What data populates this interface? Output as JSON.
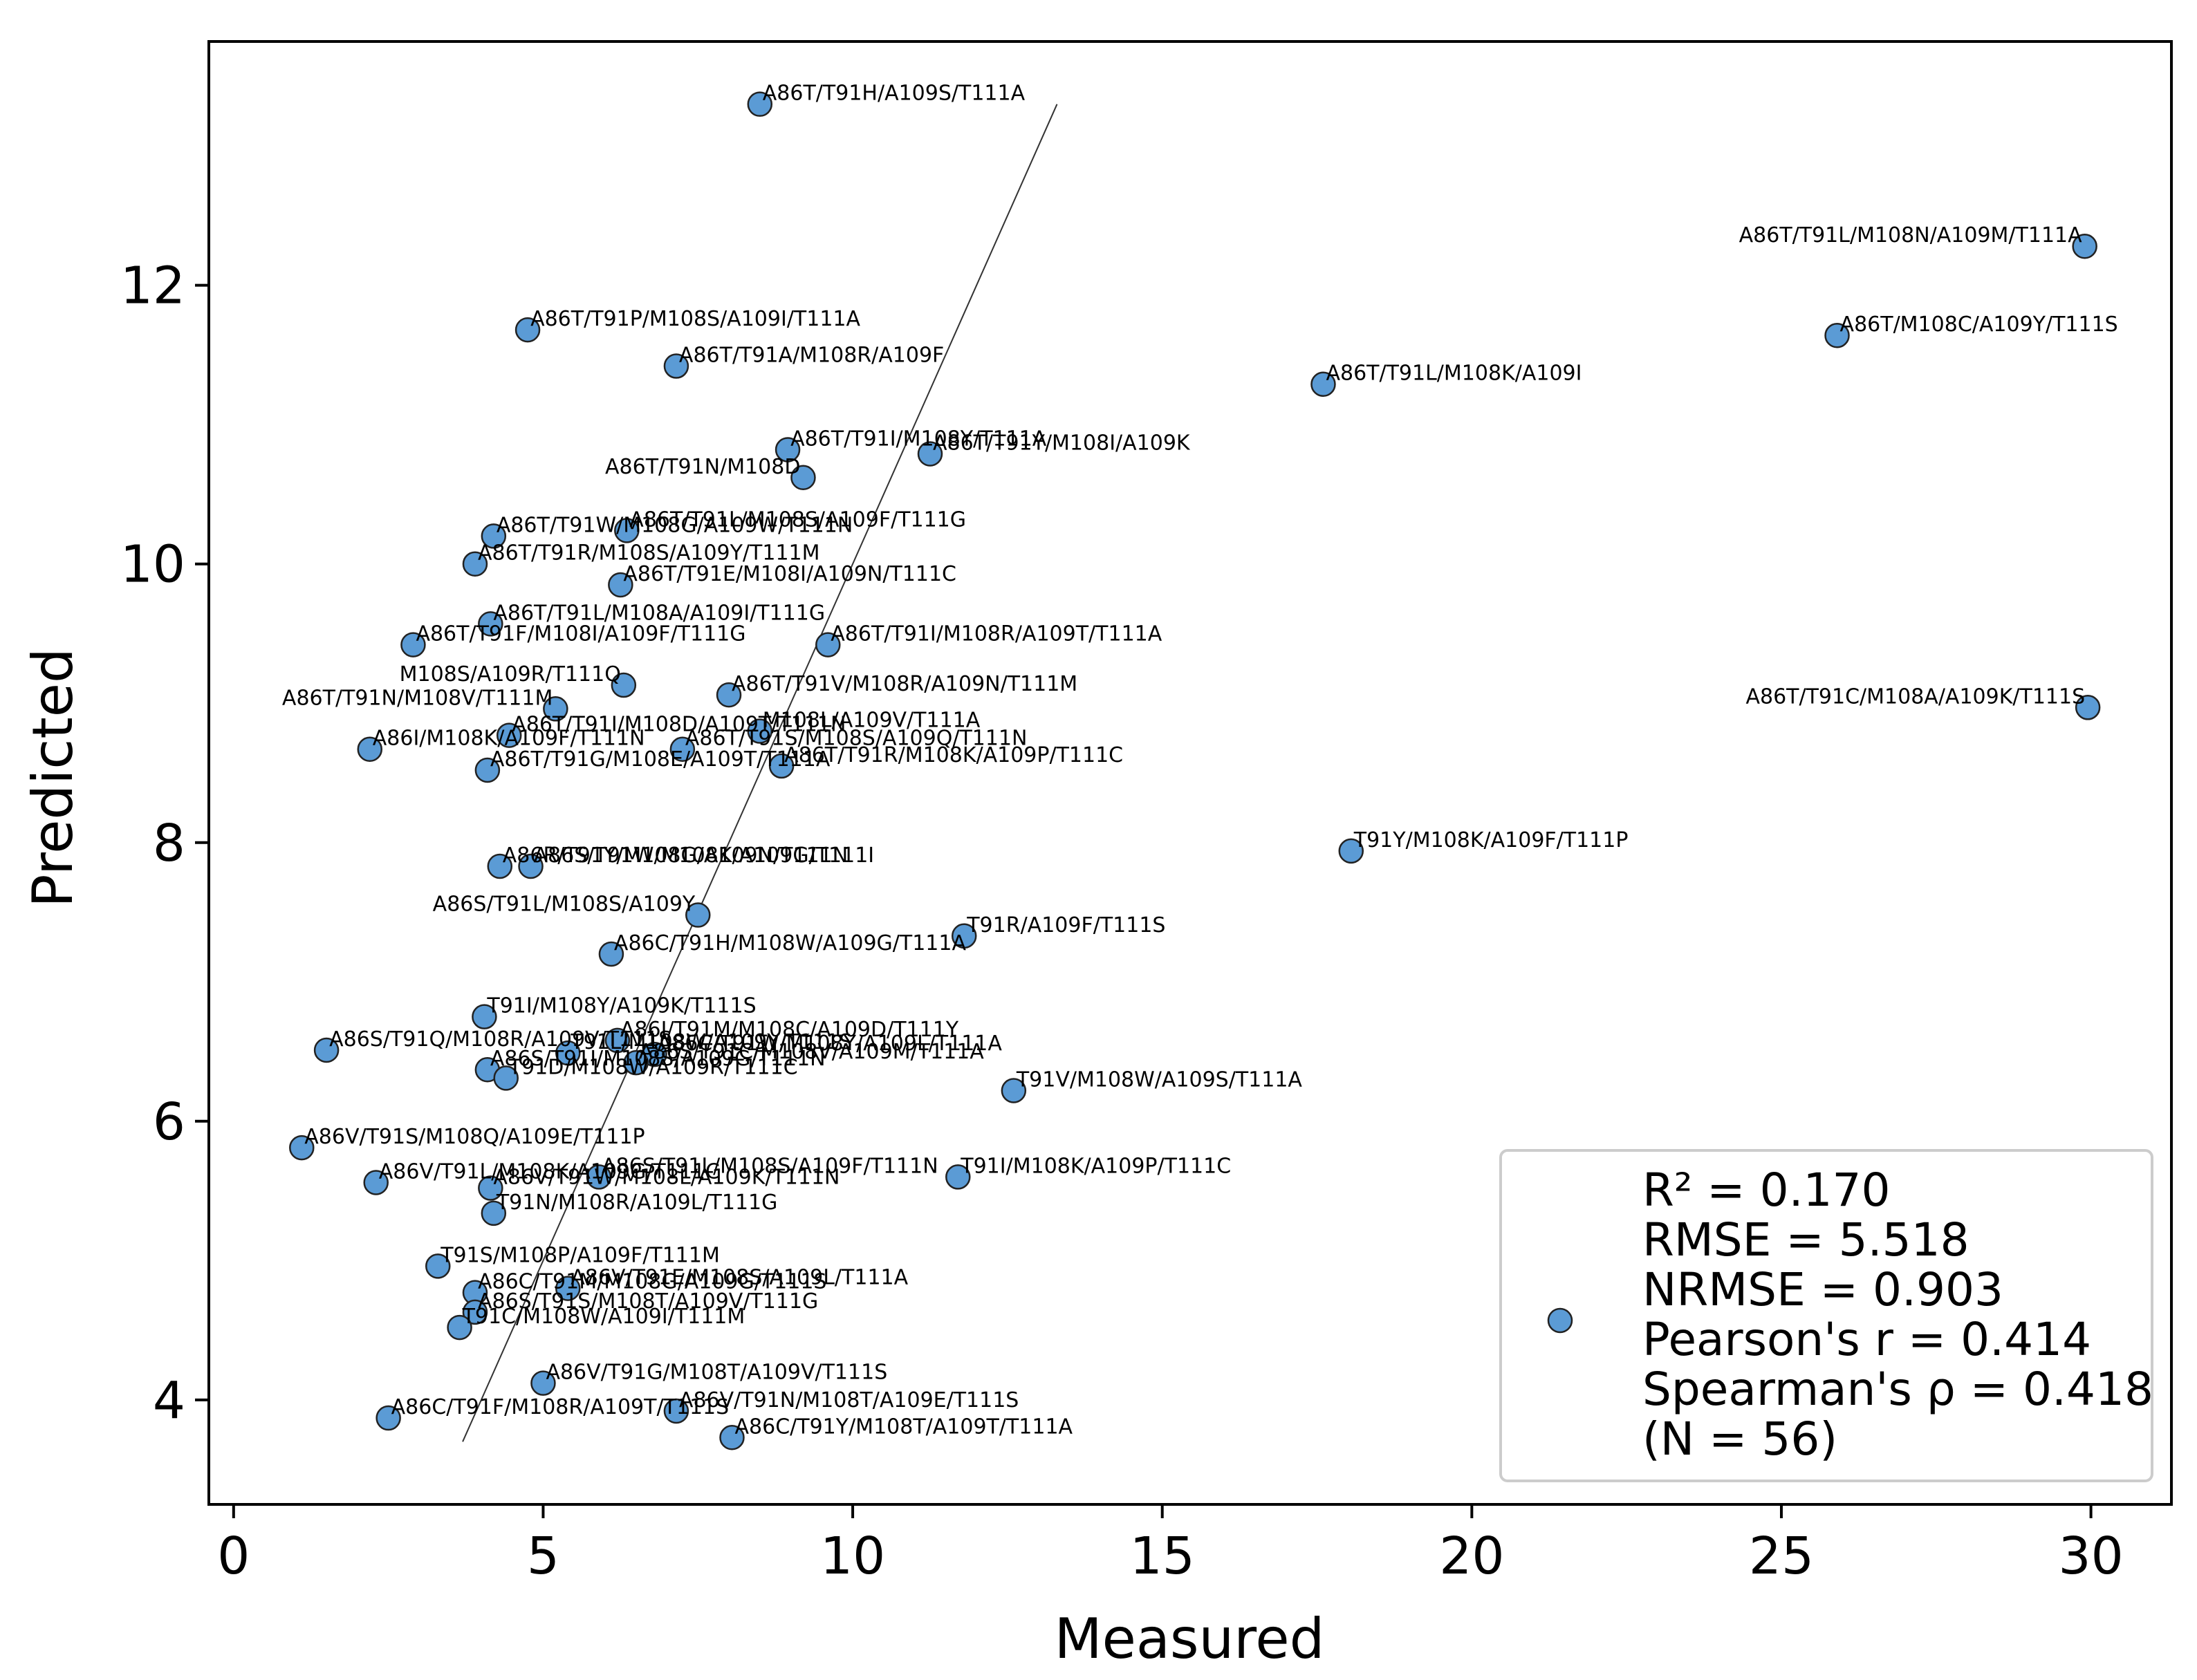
{
  "chart_data": {
    "type": "scatter",
    "title": "",
    "xlabel": "Measured",
    "ylabel": "Predicted",
    "xlim": [
      -0.4,
      31.3
    ],
    "ylim": [
      3.25,
      13.75
    ],
    "xticks": [
      0,
      5,
      10,
      15,
      20,
      25,
      30
    ],
    "yticks": [
      4,
      6,
      8,
      10,
      12
    ],
    "marker_color": "#5b9bd5",
    "edge_color": "#222222",
    "fit_line": {
      "x": [
        3.7,
        13.3
      ],
      "y": [
        3.7,
        13.3
      ]
    },
    "legend": {
      "placement": "lower-right",
      "lines": [
        "R² = 0.170",
        "RMSE = 5.518",
        "NRMSE = 0.903",
        "Pearson's r = 0.414",
        "Spearman's ρ = 0.418",
        "(N = 56)"
      ]
    },
    "points": [
      {
        "x": 8.5,
        "y": 13.3,
        "label": "A86T/T91H/A109S/T111A",
        "anchor": "start"
      },
      {
        "x": 29.9,
        "y": 12.28,
        "label": "A86T/T91L/M108N/A109M/T111A",
        "anchor": "end"
      },
      {
        "x": 4.75,
        "y": 11.68,
        "label": "A86T/T91P/M108S/A109I/T111A",
        "anchor": "start"
      },
      {
        "x": 25.9,
        "y": 11.64,
        "label": "A86T/M108C/A109Y/T111S",
        "anchor": "start"
      },
      {
        "x": 7.15,
        "y": 11.42,
        "label": "A86T/T91A/M108R/A109F",
        "anchor": "start"
      },
      {
        "x": 17.6,
        "y": 11.29,
        "label": "A86T/T91L/M108K/A109I",
        "anchor": "start"
      },
      {
        "x": 8.95,
        "y": 10.82,
        "label": "A86T/T91I/M108Y/T111A",
        "anchor": "start"
      },
      {
        "x": 11.25,
        "y": 10.79,
        "label": "A86T/T91Y/M108I/A109K",
        "anchor": "start"
      },
      {
        "x": 9.2,
        "y": 10.62,
        "label": "A86T/T91N/M108D",
        "anchor": "end"
      },
      {
        "x": 6.35,
        "y": 10.24,
        "label": "A86T/T91L/M108S/A109F/T111G",
        "anchor": "start"
      },
      {
        "x": 4.2,
        "y": 10.2,
        "label": "A86T/T91W/M108G/A109W/T111N",
        "anchor": "start"
      },
      {
        "x": 3.9,
        "y": 10.0,
        "label": "A86T/T91R/M108S/A109Y/T111M",
        "anchor": "start"
      },
      {
        "x": 6.25,
        "y": 9.85,
        "label": "A86T/T91E/M108I/A109N/T111C",
        "anchor": "start"
      },
      {
        "x": 4.15,
        "y": 9.57,
        "label": "A86T/T91L/M108A/A109I/T111G",
        "anchor": "start"
      },
      {
        "x": 2.9,
        "y": 9.42,
        "label": "A86T/T91F/M108I/A109F/T111G",
        "anchor": "start"
      },
      {
        "x": 9.6,
        "y": 9.42,
        "label": "A86T/T91I/M108R/A109T/T111A",
        "anchor": "start"
      },
      {
        "x": 6.3,
        "y": 9.13,
        "label": "M108S/A109R/T111Q",
        "anchor": "end"
      },
      {
        "x": 8.0,
        "y": 9.06,
        "label": "A86T/T91V/M108R/A109N/T111M",
        "anchor": "start"
      },
      {
        "x": 29.95,
        "y": 8.97,
        "label": "A86T/T91C/M108A/A109K/T111S",
        "anchor": "end"
      },
      {
        "x": 5.2,
        "y": 8.96,
        "label": "A86T/T91N/M108V/T111M",
        "anchor": "end"
      },
      {
        "x": 8.5,
        "y": 8.8,
        "label": "M108L/A109V/T111A",
        "anchor": "start"
      },
      {
        "x": 4.45,
        "y": 8.77,
        "label": "A86T/T91I/M108D/A109T/T111N",
        "anchor": "start"
      },
      {
        "x": 2.2,
        "y": 8.67,
        "label": "A86I/M108K/A109F/T111N",
        "anchor": "start"
      },
      {
        "x": 7.25,
        "y": 8.67,
        "label": "A86T/T91S/M108S/A109Q/T111N",
        "anchor": "start"
      },
      {
        "x": 8.85,
        "y": 8.55,
        "label": "A86T/T91R/M108K/A109P/T111C",
        "anchor": "start"
      },
      {
        "x": 4.1,
        "y": 8.52,
        "label": "A86T/T91G/M108E/A109T/T111A",
        "anchor": "start"
      },
      {
        "x": 18.05,
        "y": 7.94,
        "label": "T91Y/M108K/A109F/T111P",
        "anchor": "start"
      },
      {
        "x": 4.3,
        "y": 7.83,
        "label": "A86R/T91Y/M108G/A109N/T111N",
        "anchor": "start"
      },
      {
        "x": 4.8,
        "y": 7.83,
        "label": "A86S/T91W/M108K/A109G/T111I",
        "anchor": "start"
      },
      {
        "x": 7.5,
        "y": 7.48,
        "label": "A86S/T91L/M108S/A109Y",
        "anchor": "end"
      },
      {
        "x": 11.8,
        "y": 7.33,
        "label": "T91R/A109F/T111S",
        "anchor": "start"
      },
      {
        "x": 6.1,
        "y": 7.2,
        "label": "A86C/T91H/M108W/A109G/T111A",
        "anchor": "start"
      },
      {
        "x": 4.05,
        "y": 6.75,
        "label": "T91I/M108Y/A109K/T111S",
        "anchor": "start"
      },
      {
        "x": 6.2,
        "y": 6.58,
        "label": "A86I/T91M/M108C/A109D/T111Y",
        "anchor": "start"
      },
      {
        "x": 1.5,
        "y": 6.51,
        "label": "A86S/T91Q/M108R/A109V/T111S",
        "anchor": "start"
      },
      {
        "x": 5.4,
        "y": 6.49,
        "label": "T91L/M108W/A109Y/T111S",
        "anchor": "start"
      },
      {
        "x": 6.8,
        "y": 6.48,
        "label": "A86C/T91W/M108Y/A109L/T111A",
        "anchor": "start"
      },
      {
        "x": 6.5,
        "y": 6.42,
        "label": "A86S/T91C/M108V/A109M/T111A",
        "anchor": "start"
      },
      {
        "x": 4.1,
        "y": 6.37,
        "label": "A86S/T91I/M108S/A109G/T111N",
        "anchor": "start"
      },
      {
        "x": 4.4,
        "y": 6.31,
        "label": "T91D/M108W/A109R/T111C",
        "anchor": "start"
      },
      {
        "x": 12.6,
        "y": 6.22,
        "label": "T91V/M108W/A109S/T111A",
        "anchor": "start"
      },
      {
        "x": 1.1,
        "y": 5.81,
        "label": "A86V/T91S/M108Q/A109E/T111P",
        "anchor": "start"
      },
      {
        "x": 11.7,
        "y": 5.6,
        "label": "T91I/M108K/A109P/T111C",
        "anchor": "start"
      },
      {
        "x": 5.9,
        "y": 5.6,
        "label": "A86S/T91L/M108S/A109F/T111N",
        "anchor": "start"
      },
      {
        "x": 2.3,
        "y": 5.56,
        "label": "A86V/T91L/M108K/A109G/T111C",
        "anchor": "start"
      },
      {
        "x": 4.15,
        "y": 5.52,
        "label": "A86V/T91W/M108L/A109K/T111N",
        "anchor": "start"
      },
      {
        "x": 4.2,
        "y": 5.34,
        "label": "T91N/M108R/A109L/T111G",
        "anchor": "start"
      },
      {
        "x": 3.3,
        "y": 4.96,
        "label": "T91S/M108P/A109F/T111M",
        "anchor": "start"
      },
      {
        "x": 5.4,
        "y": 4.8,
        "label": "A86V/T91E/M108S/A109L/T111A",
        "anchor": "start"
      },
      {
        "x": 3.9,
        "y": 4.77,
        "label": "A86C/T91M/M108G/A109G/T111S",
        "anchor": "start"
      },
      {
        "x": 3.9,
        "y": 4.63,
        "label": "A86S/T91S/M108T/A109V/T111G",
        "anchor": "start"
      },
      {
        "x": 3.65,
        "y": 4.52,
        "label": "T91C/M108W/A109I/T111M",
        "anchor": "start"
      },
      {
        "x": 5.0,
        "y": 4.12,
        "label": "A86V/T91G/M108T/A109V/T111S",
        "anchor": "start"
      },
      {
        "x": 7.15,
        "y": 3.92,
        "label": "A86V/T91N/M108T/A109E/T111S",
        "anchor": "start"
      },
      {
        "x": 2.5,
        "y": 3.87,
        "label": "A86C/T91F/M108R/A109T/T111S",
        "anchor": "start"
      },
      {
        "x": 8.05,
        "y": 3.73,
        "label": "A86C/T91Y/M108T/A109T/T111A",
        "anchor": "start"
      }
    ]
  }
}
